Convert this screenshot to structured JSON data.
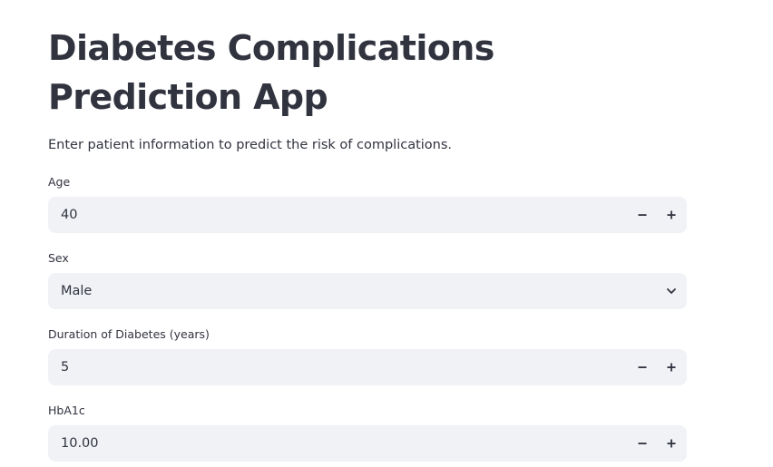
{
  "page": {
    "title": "Diabetes Complications Prediction App",
    "subtitle": "Enter patient information to predict the risk of complications."
  },
  "fields": {
    "age": {
      "label": "Age",
      "value": "40",
      "icon_minus": "minus-icon",
      "icon_plus": "plus-icon"
    },
    "sex": {
      "label": "Sex",
      "value": "Male",
      "icon": "chevron-down-icon"
    },
    "duration": {
      "label": "Duration of Diabetes (years)",
      "value": "5",
      "icon_minus": "minus-icon",
      "icon_plus": "plus-icon"
    },
    "hba1c": {
      "label": "HbA1c",
      "value": "10.00",
      "icon_minus": "minus-icon",
      "icon_plus": "plus-icon"
    }
  },
  "colors": {
    "text": "#31333f",
    "input_background": "#f0f2f6",
    "background": "#ffffff"
  }
}
